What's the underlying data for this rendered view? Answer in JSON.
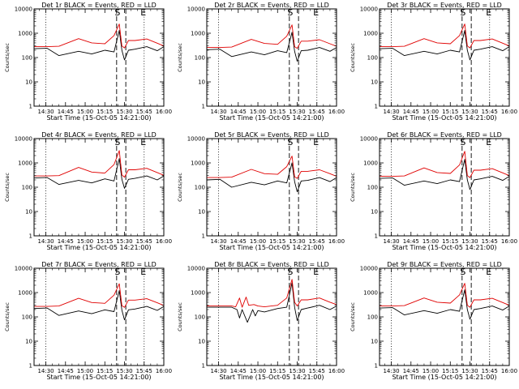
{
  "figure": {
    "page_background": "#ffffff"
  },
  "chart_data": [
    {
      "type": "line",
      "title": "Det 1r BLACK = Events, RED = LLD",
      "xlabel": "Start Time (15-Oct-05 14:21:00)",
      "ylabel": "Counts/sec",
      "xlim": [
        "14:21",
        "16:00"
      ],
      "ylim": [
        1,
        10000
      ],
      "yscale": "log",
      "x_ticks": [
        "14:30",
        "14:45",
        "15:00",
        "15:15",
        "15:30",
        "15:45",
        "16:00"
      ],
      "y_ticks": [
        "1",
        "10",
        "100",
        "1000",
        "10000"
      ],
      "series": [
        {
          "color": "#000000",
          "x": [
            "14:21",
            "14:31",
            "14:40",
            "14:55",
            "15:05",
            "15:15",
            "15:22",
            "15:26",
            "15:28",
            "15:30",
            "15:33",
            "15:38",
            "15:47",
            "15:55",
            "16:00"
          ],
          "y": [
            230,
            240,
            120,
            180,
            140,
            200,
            170,
            1300,
            200,
            80,
            200,
            220,
            280,
            190,
            280
          ]
        },
        {
          "color": "#e00000",
          "x": [
            "14:21",
            "14:31",
            "14:40",
            "14:55",
            "15:05",
            "15:15",
            "15:22",
            "15:26",
            "15:28",
            "15:30",
            "15:33",
            "15:38",
            "15:47",
            "15:55",
            "16:00"
          ],
          "y": [
            280,
            280,
            290,
            600,
            400,
            370,
            800,
            2400,
            300,
            250,
            500,
            500,
            580,
            390,
            300
          ]
        }
      ],
      "vlines_dotted": [
        "14:30",
        "15:45"
      ],
      "vlines_dashed": [
        "15:24",
        "15:31"
      ],
      "annotations": [
        "S",
        "E"
      ]
    },
    {
      "type": "line",
      "title": "Det 2r BLACK = Events, RED = LLD",
      "xlabel": "Start Time (15-Oct-05 14:21:00)",
      "ylabel": "Counts/sec",
      "xlim": [
        "14:21",
        "16:00"
      ],
      "ylim": [
        1,
        10000
      ],
      "yscale": "log",
      "x_ticks": [
        "14:30",
        "14:45",
        "15:00",
        "15:15",
        "15:30",
        "15:45",
        "16:00"
      ],
      "y_ticks": [
        "1",
        "10",
        "100",
        "1000",
        "10000"
      ],
      "series": [
        {
          "color": "#000000",
          "x": [
            "14:21",
            "14:31",
            "14:40",
            "14:55",
            "15:05",
            "15:15",
            "15:22",
            "15:26",
            "15:28",
            "15:30",
            "15:33",
            "15:38",
            "15:47",
            "15:55",
            "16:00"
          ],
          "y": [
            210,
            220,
            110,
            170,
            130,
            190,
            160,
            1100,
            180,
            70,
            190,
            200,
            260,
            180,
            260
          ]
        },
        {
          "color": "#e00000",
          "x": [
            "14:21",
            "14:31",
            "14:40",
            "14:55",
            "15:05",
            "15:15",
            "15:22",
            "15:26",
            "15:28",
            "15:30",
            "15:33",
            "15:38",
            "15:47",
            "15:55",
            "16:00"
          ],
          "y": [
            260,
            260,
            270,
            560,
            380,
            350,
            750,
            2200,
            280,
            240,
            470,
            470,
            540,
            370,
            290
          ]
        }
      ],
      "vlines_dotted": [
        "14:30",
        "15:45"
      ],
      "vlines_dashed": [
        "15:24",
        "15:31"
      ],
      "annotations": [
        "S",
        "E"
      ]
    },
    {
      "type": "line",
      "title": "Det 3r BLACK = Events, RED = LLD",
      "xlabel": "Start Time (15-Oct-05 14:21:00)",
      "ylabel": "Counts/sec",
      "xlim": [
        "14:21",
        "16:00"
      ],
      "ylim": [
        1,
        10000
      ],
      "yscale": "log",
      "x_ticks": [
        "14:30",
        "14:45",
        "15:00",
        "15:15",
        "15:30",
        "15:45",
        "16:00"
      ],
      "y_ticks": [
        "1",
        "10",
        "100",
        "1000",
        "10000"
      ],
      "series": [
        {
          "color": "#000000",
          "x": [
            "14:21",
            "14:31",
            "14:40",
            "14:55",
            "15:05",
            "15:15",
            "15:22",
            "15:26",
            "15:28",
            "15:30",
            "15:33",
            "15:38",
            "15:47",
            "15:55",
            "16:00"
          ],
          "y": [
            230,
            240,
            120,
            180,
            140,
            200,
            170,
            1300,
            200,
            80,
            200,
            220,
            280,
            190,
            280
          ]
        },
        {
          "color": "#e00000",
          "x": [
            "14:21",
            "14:31",
            "14:40",
            "14:55",
            "15:05",
            "15:15",
            "15:22",
            "15:26",
            "15:28",
            "15:30",
            "15:33",
            "15:38",
            "15:47",
            "15:55",
            "16:00"
          ],
          "y": [
            280,
            280,
            290,
            600,
            400,
            370,
            800,
            2400,
            300,
            250,
            500,
            500,
            580,
            390,
            300
          ]
        }
      ],
      "vlines_dotted": [
        "14:30",
        "15:45"
      ],
      "vlines_dashed": [
        "15:24",
        "15:31"
      ],
      "annotations": [
        "S",
        "E"
      ]
    },
    {
      "type": "line",
      "title": "Det 4r BLACK = Events, RED = LLD",
      "xlabel": "Start Time (15-Oct-05 14:21:00)",
      "ylabel": "Counts/sec",
      "xlim": [
        "14:21",
        "16:00"
      ],
      "ylim": [
        1,
        10000
      ],
      "yscale": "log",
      "x_ticks": [
        "14:30",
        "14:45",
        "15:00",
        "15:15",
        "15:30",
        "15:45",
        "16:00"
      ],
      "y_ticks": [
        "1",
        "10",
        "100",
        "1000",
        "10000"
      ],
      "series": [
        {
          "color": "#000000",
          "x": [
            "14:21",
            "14:31",
            "14:40",
            "14:55",
            "15:05",
            "15:15",
            "15:22",
            "15:26",
            "15:28",
            "15:30",
            "15:33",
            "15:38",
            "15:47",
            "15:55",
            "16:00"
          ],
          "y": [
            240,
            250,
            130,
            190,
            150,
            220,
            180,
            1500,
            210,
            90,
            210,
            230,
            290,
            200,
            290
          ]
        },
        {
          "color": "#e00000",
          "x": [
            "14:21",
            "14:31",
            "14:40",
            "14:55",
            "15:05",
            "15:15",
            "15:22",
            "15:26",
            "15:28",
            "15:30",
            "15:33",
            "15:38",
            "15:47",
            "15:55",
            "16:00"
          ],
          "y": [
            290,
            290,
            300,
            650,
            420,
            380,
            850,
            3200,
            320,
            260,
            520,
            520,
            600,
            400,
            310
          ]
        }
      ],
      "vlines_dotted": [
        "14:30",
        "15:45"
      ],
      "vlines_dashed": [
        "15:24",
        "15:31"
      ],
      "annotations": [
        "S",
        "E"
      ]
    },
    {
      "type": "line",
      "title": "Det 5r BLACK = Events, RED = LLD",
      "xlabel": "Start Time (15-Oct-05 14:21:00)",
      "ylabel": "Counts/sec",
      "xlim": [
        "14:21",
        "16:00"
      ],
      "ylim": [
        1,
        10000
      ],
      "yscale": "log",
      "x_ticks": [
        "14:30",
        "14:45",
        "15:00",
        "15:15",
        "15:30",
        "15:45",
        "16:00"
      ],
      "y_ticks": [
        "1",
        "10",
        "100",
        "1000",
        "10000"
      ],
      "series": [
        {
          "color": "#000000",
          "x": [
            "14:21",
            "14:31",
            "14:40",
            "14:55",
            "15:05",
            "15:15",
            "15:22",
            "15:26",
            "15:28",
            "15:30",
            "15:33",
            "15:38",
            "15:47",
            "15:55",
            "16:00"
          ],
          "y": [
            200,
            210,
            100,
            160,
            125,
            180,
            150,
            1000,
            170,
            65,
            180,
            190,
            250,
            170,
            250
          ]
        },
        {
          "color": "#e00000",
          "x": [
            "14:21",
            "14:31",
            "14:40",
            "14:55",
            "15:05",
            "15:15",
            "15:22",
            "15:26",
            "15:28",
            "15:30",
            "15:33",
            "15:38",
            "15:47",
            "15:55",
            "16:00"
          ],
          "y": [
            250,
            250,
            260,
            540,
            360,
            340,
            700,
            1900,
            270,
            230,
            450,
            450,
            520,
            360,
            280
          ]
        }
      ],
      "vlines_dotted": [
        "14:30",
        "15:45"
      ],
      "vlines_dashed": [
        "15:24",
        "15:31"
      ],
      "annotations": [
        "S",
        "E"
      ]
    },
    {
      "type": "line",
      "title": "Det 6r BLACK = Events, RED = LLD",
      "xlabel": "Start Time (15-Oct-05 14:21:00)",
      "ylabel": "Counts/sec",
      "xlim": [
        "14:21",
        "16:00"
      ],
      "ylim": [
        1,
        10000
      ],
      "yscale": "log",
      "x_ticks": [
        "14:30",
        "14:45",
        "15:00",
        "15:15",
        "15:30",
        "15:45",
        "16:00"
      ],
      "y_ticks": [
        "1",
        "10",
        "100",
        "1000",
        "10000"
      ],
      "series": [
        {
          "color": "#000000",
          "x": [
            "14:21",
            "14:31",
            "14:40",
            "14:55",
            "15:05",
            "15:15",
            "15:22",
            "15:26",
            "15:28",
            "15:30",
            "15:33",
            "15:38",
            "15:47",
            "15:55",
            "16:00"
          ],
          "y": [
            230,
            240,
            120,
            180,
            140,
            200,
            170,
            1400,
            200,
            80,
            200,
            220,
            280,
            190,
            280
          ]
        },
        {
          "color": "#e00000",
          "x": [
            "14:21",
            "14:31",
            "14:40",
            "14:55",
            "15:05",
            "15:15",
            "15:22",
            "15:26",
            "15:28",
            "15:30",
            "15:33",
            "15:38",
            "15:47",
            "15:55",
            "16:00"
          ],
          "y": [
            280,
            280,
            290,
            620,
            400,
            370,
            820,
            3000,
            300,
            250,
            500,
            500,
            580,
            390,
            300
          ]
        }
      ],
      "vlines_dotted": [
        "14:30",
        "15:45"
      ],
      "vlines_dashed": [
        "15:24",
        "15:31"
      ],
      "annotations": [
        "S",
        "E"
      ]
    },
    {
      "type": "line",
      "title": "Det 7r BLACK = Events, RED = LLD",
      "xlabel": "Start Time (15-Oct-05 14:21:00)",
      "ylabel": "Counts/sec",
      "xlim": [
        "14:21",
        "16:00"
      ],
      "ylim": [
        1,
        10000
      ],
      "yscale": "log",
      "x_ticks": [
        "14:30",
        "14:45",
        "15:00",
        "15:15",
        "15:30",
        "15:45",
        "16:00"
      ],
      "y_ticks": [
        "1",
        "10",
        "100",
        "1000",
        "10000"
      ],
      "series": [
        {
          "color": "#000000",
          "x": [
            "14:21",
            "14:31",
            "14:40",
            "14:55",
            "15:05",
            "15:15",
            "15:22",
            "15:26",
            "15:28",
            "15:30",
            "15:33",
            "15:38",
            "15:47",
            "15:55",
            "16:00"
          ],
          "y": [
            220,
            230,
            115,
            175,
            135,
            195,
            165,
            1200,
            190,
            75,
            195,
            210,
            270,
            185,
            270
          ]
        },
        {
          "color": "#e00000",
          "x": [
            "14:21",
            "14:31",
            "14:40",
            "14:55",
            "15:05",
            "15:15",
            "15:22",
            "15:26",
            "15:28",
            "15:30",
            "15:33",
            "15:38",
            "15:47",
            "15:55",
            "16:00"
          ],
          "y": [
            270,
            270,
            280,
            580,
            390,
            360,
            780,
            2300,
            290,
            245,
            490,
            490,
            560,
            380,
            295
          ]
        }
      ],
      "vlines_dotted": [
        "14:30",
        "15:45"
      ],
      "vlines_dashed": [
        "15:24",
        "15:31"
      ],
      "annotations": [
        "S",
        "E"
      ]
    },
    {
      "type": "line",
      "title": "Det 8r BLACK = Events, RED = LLD",
      "xlabel": "Start Time (15-Oct-05 14:21:00)",
      "ylabel": "Counts/sec",
      "xlim": [
        "14:21",
        "16:00"
      ],
      "ylim": [
        1,
        10000
      ],
      "yscale": "log",
      "x_ticks": [
        "14:30",
        "14:45",
        "15:00",
        "15:15",
        "15:30",
        "15:45",
        "16:00"
      ],
      "y_ticks": [
        "1",
        "10",
        "100",
        "1000",
        "10000"
      ],
      "series": [
        {
          "color": "#000000",
          "x": [
            "14:21",
            "14:40",
            "14:44",
            "14:46",
            "14:48",
            "14:52",
            "14:56",
            "14:58",
            "15:00",
            "15:05",
            "15:15",
            "15:22",
            "15:26",
            "15:28",
            "15:30",
            "15:33",
            "15:38",
            "15:47",
            "15:55",
            "16:00"
          ],
          "y": [
            250,
            250,
            200,
            90,
            200,
            60,
            200,
            110,
            180,
            160,
            220,
            250,
            2500,
            250,
            70,
            200,
            230,
            300,
            200,
            280
          ]
        },
        {
          "color": "#e00000",
          "x": [
            "14:21",
            "14:40",
            "14:43",
            "14:46",
            "14:48",
            "14:51",
            "14:53",
            "14:57",
            "15:00",
            "15:05",
            "15:15",
            "15:22",
            "15:26",
            "15:28",
            "15:30",
            "15:33",
            "15:38",
            "15:47",
            "15:55",
            "16:00"
          ],
          "y": [
            280,
            280,
            260,
            600,
            250,
            650,
            300,
            320,
            280,
            260,
            300,
            600,
            3500,
            400,
            280,
            500,
            500,
            600,
            400,
            320
          ]
        }
      ],
      "vlines_dotted": [
        "14:30",
        "15:45"
      ],
      "vlines_dashed": [
        "15:24",
        "15:31"
      ],
      "annotations": [
        "S",
        "E"
      ]
    },
    {
      "type": "line",
      "title": "Det 9r BLACK = Events, RED = LLD",
      "xlabel": "Start Time (15-Oct-05 14:21:00)",
      "ylabel": "Counts/sec",
      "xlim": [
        "14:21",
        "16:00"
      ],
      "ylim": [
        1,
        10000
      ],
      "yscale": "log",
      "x_ticks": [
        "14:30",
        "14:45",
        "15:00",
        "15:15",
        "15:30",
        "15:45",
        "16:00"
      ],
      "y_ticks": [
        "1",
        "10",
        "100",
        "1000",
        "10000"
      ],
      "series": [
        {
          "color": "#000000",
          "x": [
            "14:21",
            "14:31",
            "14:40",
            "14:55",
            "15:05",
            "15:15",
            "15:22",
            "15:26",
            "15:28",
            "15:30",
            "15:33",
            "15:38",
            "15:47",
            "15:55",
            "16:00"
          ],
          "y": [
            230,
            240,
            120,
            180,
            140,
            200,
            170,
            1300,
            200,
            80,
            200,
            220,
            280,
            190,
            280
          ]
        },
        {
          "color": "#e00000",
          "x": [
            "14:21",
            "14:31",
            "14:40",
            "14:55",
            "15:05",
            "15:15",
            "15:22",
            "15:26",
            "15:28",
            "15:30",
            "15:33",
            "15:38",
            "15:47",
            "15:55",
            "16:00"
          ],
          "y": [
            280,
            280,
            290,
            600,
            400,
            370,
            800,
            2400,
            300,
            250,
            500,
            500,
            580,
            390,
            300
          ]
        }
      ],
      "vlines_dotted": [
        "14:30",
        "15:45"
      ],
      "vlines_dashed": [
        "15:24",
        "15:31"
      ],
      "annotations": [
        "S",
        "E"
      ]
    }
  ]
}
